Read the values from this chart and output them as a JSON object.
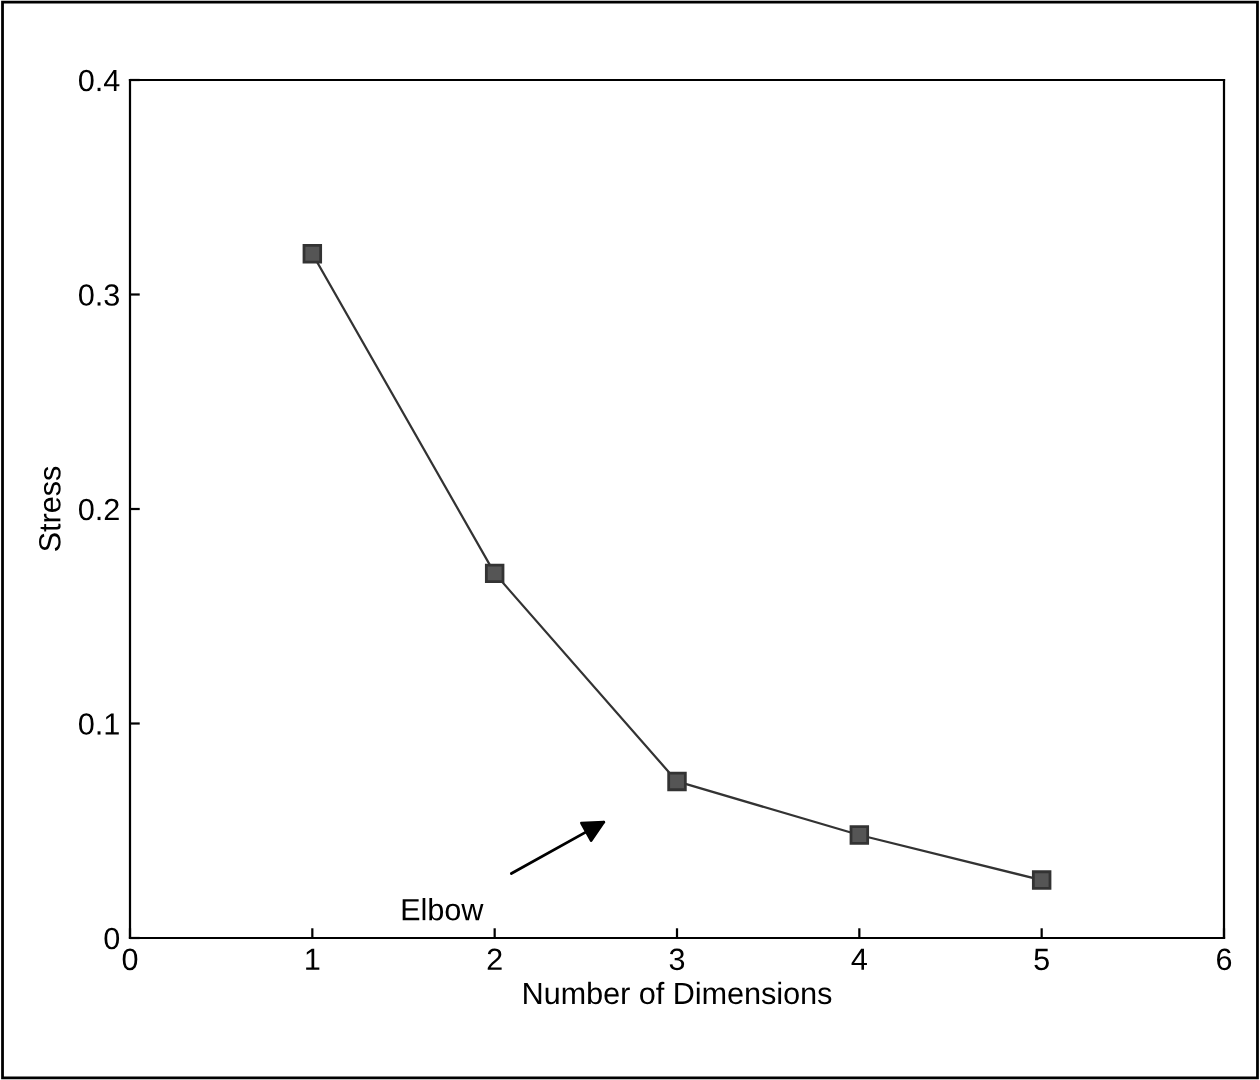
{
  "chart_data": {
    "type": "line",
    "xlabel": "Number of Dimensions",
    "ylabel": "Stress",
    "x": [
      1,
      2,
      3,
      4,
      5
    ],
    "series": [
      {
        "color": "#333333",
        "values": [
          0.319,
          0.17,
          0.073,
          0.048,
          0.027
        ]
      }
    ],
    "xlim": [
      0,
      6
    ],
    "xticks": [
      0,
      1,
      2,
      3,
      4,
      5,
      6
    ],
    "ylim": [
      0,
      0.4
    ],
    "yticks": [
      0,
      0.1,
      0.2,
      0.3,
      0.4
    ],
    "marker": "square",
    "line_style": "solid",
    "grid": false,
    "legend": false,
    "annotations": [
      "Elbow"
    ]
  }
}
